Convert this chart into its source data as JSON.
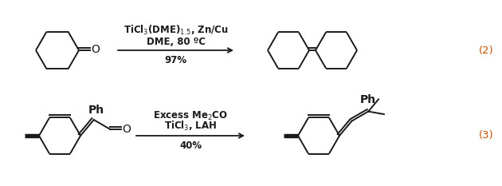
{
  "bg_color": "#ffffff",
  "text_color": "#1a1a1a",
  "label_color": "#c85000",
  "line_color": "#1a1a1a",
  "line_width": 1.4,
  "rxn1_arrow_label_top": "TiCl$_3$(DME)$_{1.5}$, Zn/Cu",
  "rxn1_arrow_label_mid": "DME, 80 ºC",
  "rxn1_arrow_label_bot": "97%",
  "rxn2_arrow_label_top": "Excess Me$_2$CO",
  "rxn2_arrow_label_mid": "TiCl$_3$, LAH",
  "rxn2_arrow_label_bot": "40%",
  "rxn1_number": "(2)",
  "rxn2_number": "(3)",
  "font_size": 8.5
}
